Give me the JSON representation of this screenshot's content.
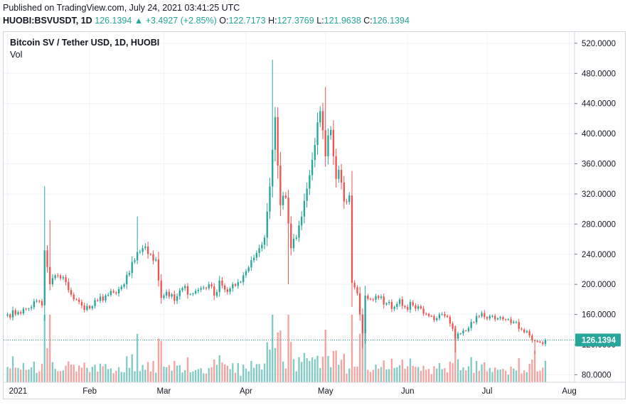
{
  "header": {
    "published": "Published on TradingView.com, July 24, 2021 03:41:25 UTC",
    "symbol": "HUOBI:BSVUSDT, 1D",
    "last": "126.1394",
    "change": "+3.4927 (+2.85%)",
    "o_label": "O:",
    "o_value": "122.7173",
    "h_label": "H:",
    "h_value": "127.3769",
    "l_label": "L:",
    "l_value": "121.9638",
    "c_label": "C:",
    "c_value": "126.1394"
  },
  "colors": {
    "up": "#26a69a",
    "down": "#ef5350",
    "up_vol": "#80cbc4",
    "down_vol": "#f4a3a1",
    "grid": "#f0f3fa"
  },
  "chart_data": {
    "type": "candlestick",
    "title": "Bitcoin SV / Tether USD, 1D, HUOBI",
    "volume_label": "Vol",
    "last_price_label": "126.1394",
    "last_price": 126.1394,
    "y_ticks": [
      80,
      120,
      160,
      200,
      240,
      280,
      320,
      360,
      400,
      440,
      480,
      520
    ],
    "y_tick_labels": [
      "80.0000",
      "120.0000",
      "160.0000",
      "200.0000",
      "240.0000",
      "280.0000",
      "320.0000",
      "360.0000",
      "400.0000",
      "440.0000",
      "480.0000",
      "520.0000"
    ],
    "ylim": [
      70,
      535
    ],
    "x_ticks": [
      {
        "label": "2021",
        "day": 0
      },
      {
        "label": "Feb",
        "day": 31
      },
      {
        "label": "Mar",
        "day": 59
      },
      {
        "label": "Apr",
        "day": 90
      },
      {
        "label": "May",
        "day": 120
      },
      {
        "label": "Jun",
        "day": 151
      },
      {
        "label": "Jul",
        "day": 181
      },
      {
        "label": "Aug",
        "day": 212
      }
    ],
    "x_range_days": [
      -1.5,
      214
    ],
    "grid": true,
    "keyframes_day_close": [
      [
        0,
        160
      ],
      [
        4,
        163
      ],
      [
        8,
        168
      ],
      [
        11,
        178
      ],
      [
        13,
        172
      ],
      [
        14,
        245
      ],
      [
        16,
        200
      ],
      [
        18,
        212
      ],
      [
        20,
        208
      ],
      [
        22,
        203
      ],
      [
        25,
        180
      ],
      [
        28,
        172
      ],
      [
        31,
        168
      ],
      [
        34,
        178
      ],
      [
        37,
        185
      ],
      [
        41,
        188
      ],
      [
        44,
        200
      ],
      [
        46,
        215
      ],
      [
        49,
        243
      ],
      [
        51,
        248
      ],
      [
        54,
        240
      ],
      [
        56,
        233
      ],
      [
        58,
        182
      ],
      [
        60,
        190
      ],
      [
        63,
        178
      ],
      [
        66,
        195
      ],
      [
        70,
        188
      ],
      [
        73,
        195
      ],
      [
        76,
        200
      ],
      [
        78,
        185
      ],
      [
        80,
        205
      ],
      [
        83,
        190
      ],
      [
        86,
        198
      ],
      [
        89,
        212
      ],
      [
        92,
        232
      ],
      [
        95,
        248
      ],
      [
        97,
        262
      ],
      [
        99,
        330
      ],
      [
        101,
        422
      ],
      [
        103,
        305
      ],
      [
        105,
        315
      ],
      [
        107,
        248
      ],
      [
        109,
        262
      ],
      [
        111,
        290
      ],
      [
        114,
        345
      ],
      [
        116,
        385
      ],
      [
        117,
        415
      ],
      [
        118,
        430
      ],
      [
        120,
        370
      ],
      [
        122,
        405
      ],
      [
        124,
        340
      ],
      [
        125,
        352
      ],
      [
        127,
        310
      ],
      [
        129,
        318
      ],
      [
        130,
        202
      ],
      [
        132,
        188
      ],
      [
        134,
        135
      ],
      [
        135,
        185
      ],
      [
        137,
        180
      ],
      [
        140,
        182
      ],
      [
        143,
        175
      ],
      [
        146,
        170
      ],
      [
        148,
        180
      ],
      [
        150,
        170
      ],
      [
        153,
        172
      ],
      [
        156,
        168
      ],
      [
        159,
        158
      ],
      [
        162,
        155
      ],
      [
        165,
        158
      ],
      [
        167,
        148
      ],
      [
        169,
        128
      ],
      [
        171,
        135
      ],
      [
        173,
        138
      ],
      [
        175,
        150
      ],
      [
        177,
        158
      ],
      [
        179,
        162
      ],
      [
        182,
        158
      ],
      [
        185,
        155
      ],
      [
        188,
        153
      ],
      [
        191,
        150
      ],
      [
        194,
        140
      ],
      [
        197,
        132
      ],
      [
        199,
        125
      ],
      [
        201,
        123
      ],
      [
        203,
        126
      ]
    ],
    "notable_highs": [
      [
        14,
        330
      ],
      [
        16,
        285
      ],
      [
        49,
        290
      ],
      [
        100,
        498
      ],
      [
        102,
        435
      ],
      [
        120,
        462
      ]
    ],
    "notable_lows": [
      [
        106,
        200
      ],
      [
        134,
        115
      ],
      [
        169,
        110
      ],
      [
        199,
        108
      ]
    ]
  }
}
